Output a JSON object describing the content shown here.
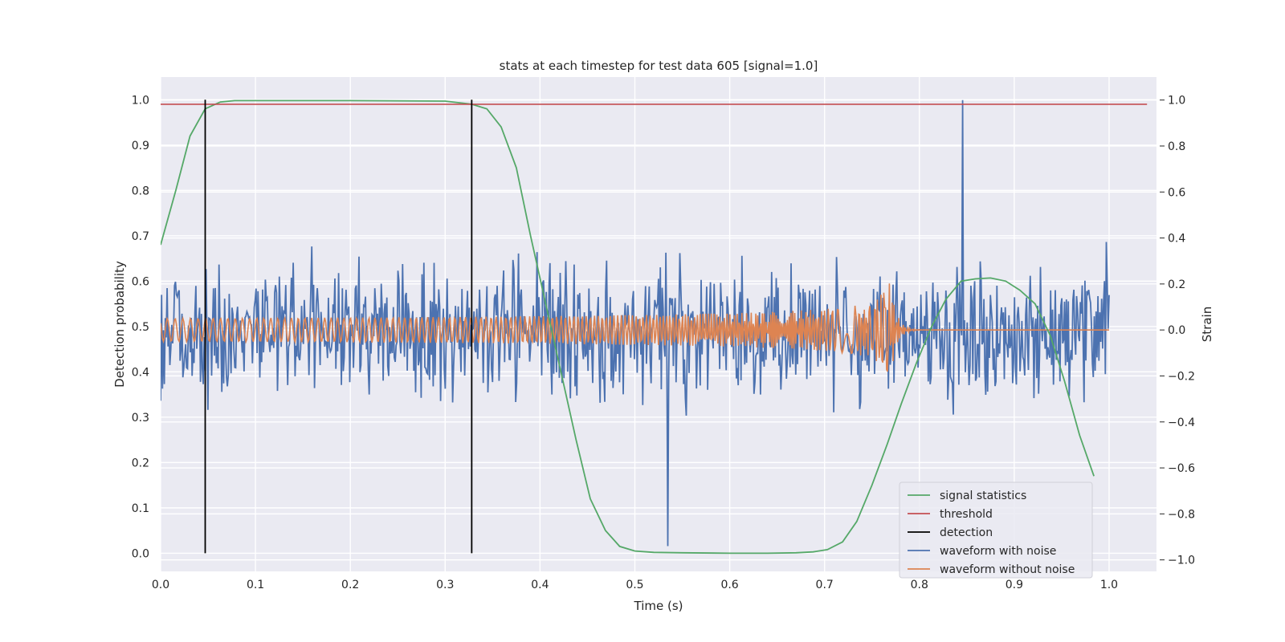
{
  "chart_data": {
    "type": "line",
    "title": "stats at each timestep for test data 605 [signal=1.0]",
    "xlabel": "Time (s)",
    "ylabel": "Detection probability",
    "ylabel_right": "Strain",
    "xlim": [
      0.0,
      1.05
    ],
    "ylim": [
      -0.04,
      1.05
    ],
    "ylim_right": [
      -1.05,
      1.1
    ],
    "x_ticks": [
      "0.0",
      "0.1",
      "0.2",
      "0.3",
      "0.4",
      "0.5",
      "0.6",
      "0.7",
      "0.8",
      "0.9",
      "1.0"
    ],
    "y_ticks": [
      "0.0",
      "0.1",
      "0.2",
      "0.3",
      "0.4",
      "0.5",
      "0.6",
      "0.7",
      "0.8",
      "0.9",
      "1.0"
    ],
    "y_right_ticks": [
      "−1.0",
      "−0.8",
      "−0.6",
      "−0.4",
      "−0.2",
      "0.0",
      "0.2",
      "0.4",
      "0.6",
      "0.8",
      "1.0"
    ],
    "grid": true,
    "legend_position": "lower-right",
    "colors": {
      "signal": "#55a868",
      "threshold": "#c44e52",
      "detection": "#000000",
      "noisy": "#4c72b0",
      "clean": "#dd8452",
      "background": "#eaeaf2"
    },
    "series": [
      {
        "name": "signal statistics",
        "axis": "left",
        "x": [
          0.0,
          0.016,
          0.031,
          0.047,
          0.063,
          0.078,
          0.1,
          0.2,
          0.3,
          0.328,
          0.344,
          0.359,
          0.375,
          0.39,
          0.406,
          0.422,
          0.438,
          0.453,
          0.469,
          0.484,
          0.5,
          0.52,
          0.55,
          0.6,
          0.64,
          0.67,
          0.688,
          0.703,
          0.719,
          0.734,
          0.75,
          0.766,
          0.781,
          0.797,
          0.813,
          0.828,
          0.844,
          0.859,
          0.875,
          0.891,
          0.906,
          0.922,
          0.938,
          0.953,
          0.969,
          0.984
        ],
        "y": [
          0.68,
          0.8,
          0.92,
          0.98,
          0.995,
          0.998,
          0.998,
          0.998,
          0.997,
          0.99,
          0.98,
          0.94,
          0.85,
          0.7,
          0.55,
          0.4,
          0.25,
          0.12,
          0.05,
          0.015,
          0.005,
          0.002,
          0.001,
          0.0,
          0.0,
          0.001,
          0.003,
          0.008,
          0.025,
          0.07,
          0.15,
          0.24,
          0.33,
          0.42,
          0.5,
          0.56,
          0.6,
          0.605,
          0.607,
          0.6,
          0.58,
          0.55,
          0.48,
          0.38,
          0.26,
          0.17
        ]
      },
      {
        "name": "threshold",
        "axis": "left",
        "x": [
          0.0,
          1.04
        ],
        "y": [
          0.99,
          0.99
        ]
      },
      {
        "name": "detection",
        "axis": "left",
        "x": [
          0.047,
          0.328
        ],
        "y_range": [
          0.0,
          1.0
        ]
      },
      {
        "name": "waveform with noise",
        "axis": "right",
        "x_range": [
          0.0,
          1.0
        ],
        "points": 1024,
        "y_range": [
          -0.94,
          1.0
        ]
      },
      {
        "name": "waveform without noise",
        "axis": "right",
        "x_range": [
          0.0,
          1.0
        ],
        "points": 1024,
        "merger_time": 0.768,
        "amplitude_start": 0.05,
        "amplitude_peak": 0.35
      }
    ]
  }
}
